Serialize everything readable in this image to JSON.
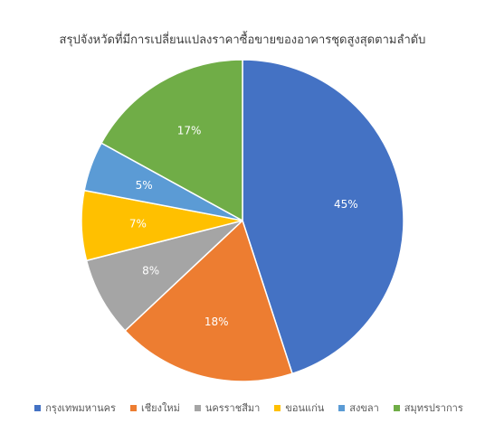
{
  "chart_data": {
    "type": "pie",
    "title": "สรุปจังหวัดที่มีการเปลี่ยนแปลงราคาซื้อขายของอาคารชุดสูงสุดตามลำดับ",
    "categories": [
      "กรุงเทพมหานคร",
      "เชียงใหม่",
      "นครราชสีมา",
      "ขอนแก่น",
      "สงขลา",
      "สมุทรปราการ"
    ],
    "values": [
      45,
      18,
      8,
      7,
      5,
      17
    ],
    "labels": [
      "45%",
      "18%",
      "8%",
      "7%",
      "5%",
      "17%"
    ],
    "colors": [
      "#4472C4",
      "#ED7D31",
      "#A5A5A5",
      "#FFC000",
      "#5B9BD5",
      "#70AD47"
    ],
    "legend_position": "bottom"
  }
}
